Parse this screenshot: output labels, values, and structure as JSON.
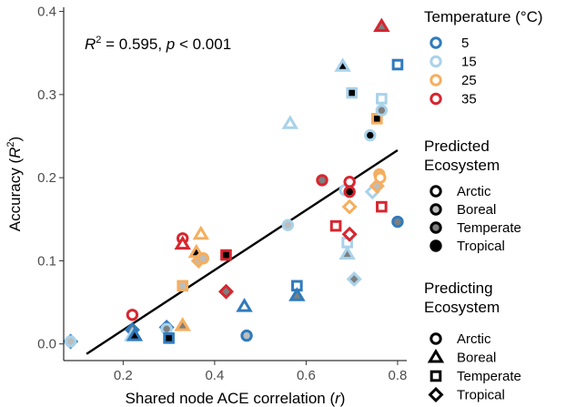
{
  "chart_data": {
    "type": "scatter",
    "xlabel_main": "Shared node ACE correlation (",
    "xlabel_var": "r",
    "xlabel_end": ")",
    "ylabel_main": "Accuracy (",
    "ylabel_var": "R",
    "ylabel_sup": "2",
    "ylabel_end": ")",
    "xlim": [
      0.07,
      0.82
    ],
    "ylim": [
      -0.02,
      0.405
    ],
    "x_ticks": [
      0.2,
      0.4,
      0.6,
      0.8
    ],
    "x_tick_labels": [
      "0.2",
      "0.4",
      "0.6",
      "0.8"
    ],
    "y_ticks": [
      0.0,
      0.1,
      0.2,
      0.3,
      0.4
    ],
    "y_tick_labels": [
      "0.0",
      "0.1",
      "0.2",
      "0.3",
      "0.4"
    ],
    "fit_line": {
      "x": [
        0.12,
        0.8
      ],
      "y": [
        -0.012,
        0.233
      ]
    },
    "annotation": {
      "r_var": "R",
      "r_sup": "2",
      "eq": " = 0.595, ",
      "p_var": "p",
      "rest": " < 0.001"
    },
    "colors": {
      "5": "#2f7bbd",
      "15": "#a9d2ea",
      "25": "#f6ae5e",
      "35": "#d7262f"
    },
    "fills": {
      "Arctic": "#ffffff",
      "Boreal": "#bdbdbd",
      "Temperate": "#7f7f7f",
      "Tropical": "#000000"
    },
    "points": [
      {
        "x": 0.085,
        "y": 0.003,
        "temp": "5",
        "pred": "Arctic",
        "shape": "Tropical"
      },
      {
        "x": 0.085,
        "y": 0.003,
        "temp": "15",
        "pred": "Boreal",
        "shape": "Arctic"
      },
      {
        "x": 0.22,
        "y": 0.035,
        "temp": "35",
        "pred": "Arctic",
        "shape": "Arctic"
      },
      {
        "x": 0.22,
        "y": 0.017,
        "temp": "5",
        "pred": "Temperate",
        "shape": "Tropical"
      },
      {
        "x": 0.22,
        "y": 0.01,
        "temp": "15",
        "pred": "Tropical",
        "shape": "Boreal"
      },
      {
        "x": 0.225,
        "y": 0.01,
        "temp": "5",
        "pred": "Tropical",
        "shape": "Boreal"
      },
      {
        "x": 0.295,
        "y": 0.02,
        "temp": "5",
        "pred": "Temperate",
        "shape": "Tropical"
      },
      {
        "x": 0.295,
        "y": 0.018,
        "temp": "15",
        "pred": "Temperate",
        "shape": "Arctic"
      },
      {
        "x": 0.3,
        "y": 0.007,
        "temp": "5",
        "pred": "Tropical",
        "shape": "Temperate"
      },
      {
        "x": 0.33,
        "y": 0.022,
        "temp": "25",
        "pred": "Temperate",
        "shape": "Boreal"
      },
      {
        "x": 0.33,
        "y": 0.07,
        "temp": "25",
        "pred": "Boreal",
        "shape": "Temperate"
      },
      {
        "x": 0.33,
        "y": 0.127,
        "temp": "35",
        "pred": "Arctic",
        "shape": "Arctic"
      },
      {
        "x": 0.33,
        "y": 0.12,
        "temp": "35",
        "pred": "Arctic",
        "shape": "Boreal"
      },
      {
        "x": 0.36,
        "y": 0.11,
        "temp": "25",
        "pred": "Tropical",
        "shape": "Boreal"
      },
      {
        "x": 0.37,
        "y": 0.132,
        "temp": "25",
        "pred": "Arctic",
        "shape": "Boreal"
      },
      {
        "x": 0.365,
        "y": 0.1,
        "temp": "25",
        "pred": "Boreal",
        "shape": "Tropical"
      },
      {
        "x": 0.375,
        "y": 0.103,
        "temp": "25",
        "pred": "Boreal",
        "shape": "Arctic"
      },
      {
        "x": 0.425,
        "y": 0.107,
        "temp": "35",
        "pred": "Tropical",
        "shape": "Temperate"
      },
      {
        "x": 0.425,
        "y": 0.063,
        "temp": "35",
        "pred": "Temperate",
        "shape": "Tropical"
      },
      {
        "x": 0.465,
        "y": 0.045,
        "temp": "5",
        "pred": "Arctic",
        "shape": "Boreal"
      },
      {
        "x": 0.47,
        "y": 0.01,
        "temp": "5",
        "pred": "Boreal",
        "shape": "Arctic"
      },
      {
        "x": 0.56,
        "y": 0.143,
        "temp": "15",
        "pred": "Boreal",
        "shape": "Arctic"
      },
      {
        "x": 0.565,
        "y": 0.265,
        "temp": "15",
        "pred": "Arctic",
        "shape": "Boreal"
      },
      {
        "x": 0.58,
        "y": 0.07,
        "temp": "5",
        "pred": "Arctic",
        "shape": "Temperate"
      },
      {
        "x": 0.58,
        "y": 0.058,
        "temp": "5",
        "pred": "Temperate",
        "shape": "Boreal"
      },
      {
        "x": 0.635,
        "y": 0.197,
        "temp": "35",
        "pred": "Temperate",
        "shape": "Arctic"
      },
      {
        "x": 0.665,
        "y": 0.142,
        "temp": "35",
        "pred": "Arctic",
        "shape": "Temperate"
      },
      {
        "x": 0.68,
        "y": 0.334,
        "temp": "15",
        "pred": "Tropical",
        "shape": "Boreal"
      },
      {
        "x": 0.685,
        "y": 0.185,
        "temp": "15",
        "pred": "Arctic",
        "shape": "Arctic"
      },
      {
        "x": 0.69,
        "y": 0.122,
        "temp": "15",
        "pred": "Arctic",
        "shape": "Temperate"
      },
      {
        "x": 0.69,
        "y": 0.108,
        "temp": "15",
        "pred": "Temperate",
        "shape": "Boreal"
      },
      {
        "x": 0.695,
        "y": 0.195,
        "temp": "35",
        "pred": "Arctic",
        "shape": "Arctic"
      },
      {
        "x": 0.695,
        "y": 0.183,
        "temp": "35",
        "pred": "Tropical",
        "shape": "Arctic"
      },
      {
        "x": 0.695,
        "y": 0.165,
        "temp": "25",
        "pred": "Arctic",
        "shape": "Tropical"
      },
      {
        "x": 0.695,
        "y": 0.132,
        "temp": "35",
        "pred": "Arctic",
        "shape": "Tropical"
      },
      {
        "x": 0.7,
        "y": 0.302,
        "temp": "15",
        "pred": "Tropical",
        "shape": "Temperate"
      },
      {
        "x": 0.705,
        "y": 0.078,
        "temp": "15",
        "pred": "Temperate",
        "shape": "Tropical"
      },
      {
        "x": 0.74,
        "y": 0.251,
        "temp": "15",
        "pred": "Tropical",
        "shape": "Arctic"
      },
      {
        "x": 0.745,
        "y": 0.183,
        "temp": "15",
        "pred": "Arctic",
        "shape": "Tropical"
      },
      {
        "x": 0.755,
        "y": 0.271,
        "temp": "25",
        "pred": "Tropical",
        "shape": "Temperate"
      },
      {
        "x": 0.755,
        "y": 0.19,
        "temp": "25",
        "pred": "Boreal",
        "shape": "Tropical"
      },
      {
        "x": 0.76,
        "y": 0.204,
        "temp": "25",
        "pred": "Boreal",
        "shape": "Arctic"
      },
      {
        "x": 0.762,
        "y": 0.2,
        "temp": "25",
        "pred": "Arctic",
        "shape": "Arctic"
      },
      {
        "x": 0.765,
        "y": 0.295,
        "temp": "15",
        "pred": "Arctic",
        "shape": "Temperate"
      },
      {
        "x": 0.765,
        "y": 0.281,
        "temp": "15",
        "pred": "Temperate",
        "shape": "Arctic"
      },
      {
        "x": 0.765,
        "y": 0.382,
        "temp": "35",
        "pred": "Temperate",
        "shape": "Boreal"
      },
      {
        "x": 0.765,
        "y": 0.165,
        "temp": "35",
        "pred": "Arctic",
        "shape": "Temperate"
      },
      {
        "x": 0.8,
        "y": 0.336,
        "temp": "5",
        "pred": "Arctic",
        "shape": "Temperate"
      },
      {
        "x": 0.8,
        "y": 0.147,
        "temp": "5",
        "pred": "Temperate",
        "shape": "Arctic"
      }
    ],
    "legends": {
      "temperature": {
        "title": "Temperature (°C)",
        "items": [
          {
            "label": "5",
            "key": "5"
          },
          {
            "label": "15",
            "key": "15"
          },
          {
            "label": "25",
            "key": "25"
          },
          {
            "label": "35",
            "key": "35"
          }
        ]
      },
      "predicted": {
        "title_lines": [
          "Predicted",
          "Ecosystem"
        ],
        "items": [
          {
            "label": "Arctic",
            "key": "Arctic"
          },
          {
            "label": "Boreal",
            "key": "Boreal"
          },
          {
            "label": "Temperate",
            "key": "Temperate"
          },
          {
            "label": "Tropical",
            "key": "Tropical"
          }
        ]
      },
      "predicting": {
        "title_lines": [
          "Predicting",
          "Ecosystem"
        ],
        "items": [
          {
            "label": "Arctic",
            "key": "Arctic"
          },
          {
            "label": "Boreal",
            "key": "Boreal"
          },
          {
            "label": "Temperate",
            "key": "Temperate"
          },
          {
            "label": "Tropical",
            "key": "Tropical"
          }
        ]
      }
    }
  }
}
